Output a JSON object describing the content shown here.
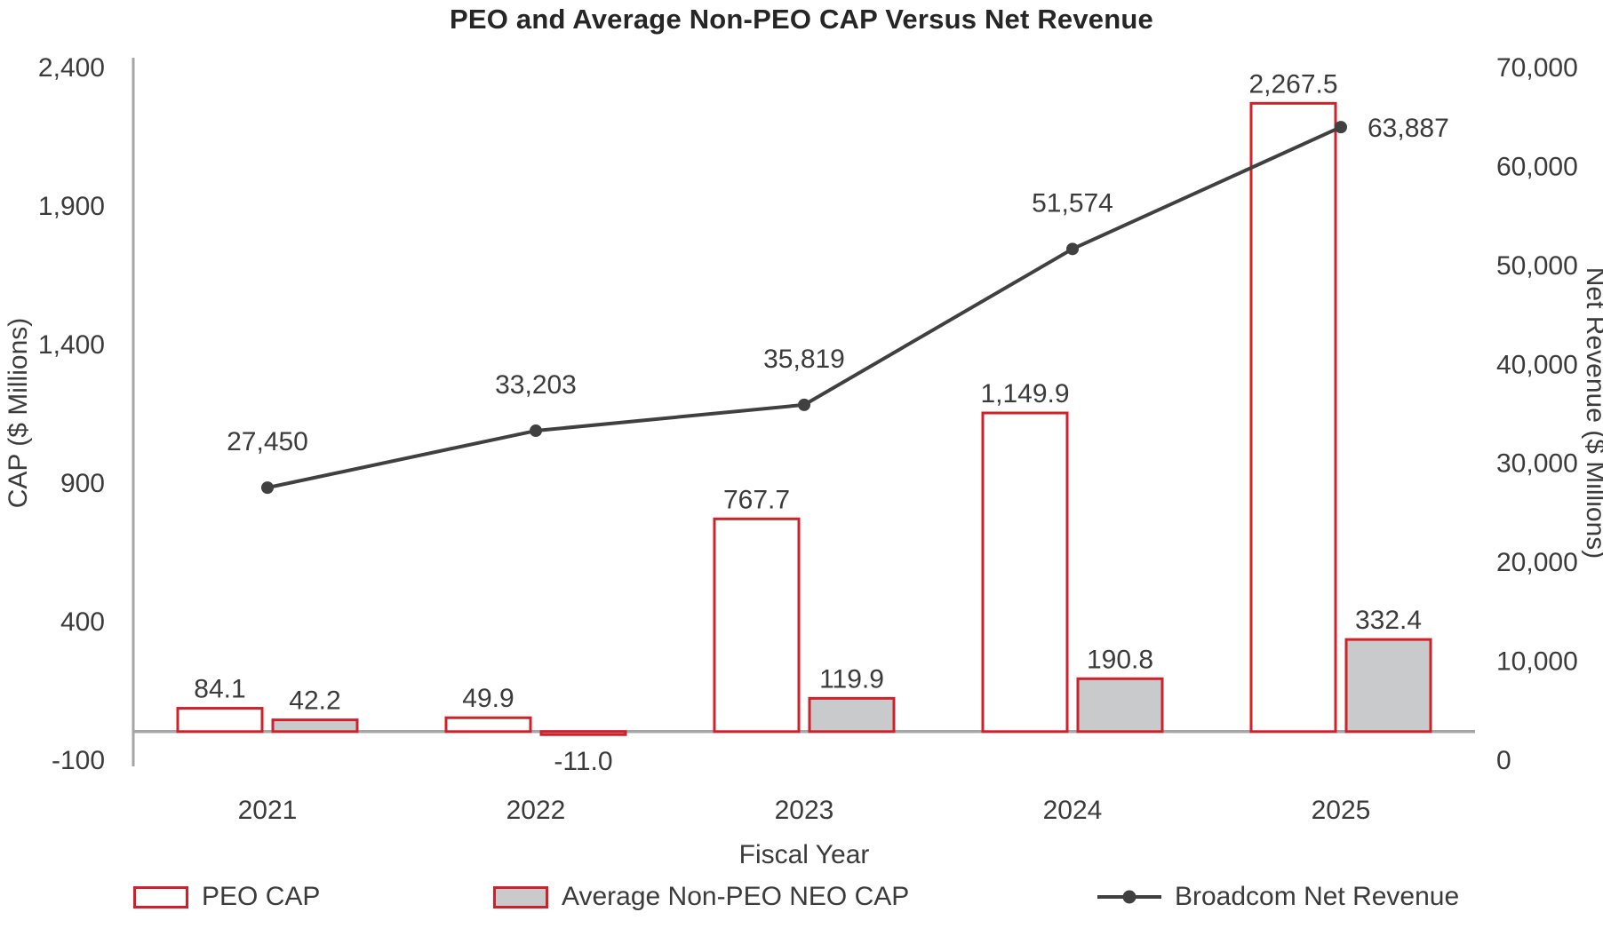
{
  "title": "PEO and Average Non-PEO CAP Versus Net Revenue",
  "chart_data": {
    "type": "combo-bar-line",
    "title": "PEO and Average Non-PEO CAP Versus Net Revenue",
    "categories": [
      "2021",
      "2022",
      "2023",
      "2024",
      "2025"
    ],
    "xlabel": "Fiscal Year",
    "grid": false,
    "legend_position": "bottom",
    "series": [
      {
        "name": "PEO CAP",
        "type": "bar",
        "axis": "left",
        "values": [
          84.1,
          49.9,
          767.7,
          1149.9,
          2267.5
        ],
        "labels": [
          "84.1",
          "49.9",
          "767.7",
          "1,149.9",
          "2,267.5"
        ],
        "fill": "#FFFFFF",
        "stroke": "#D0212A"
      },
      {
        "name": "Average Non-PEO NEO CAP",
        "type": "bar",
        "axis": "left",
        "values": [
          42.2,
          -11.0,
          119.9,
          190.8,
          332.4
        ],
        "labels": [
          "42.2",
          "-11.0",
          "119.9",
          "190.8",
          "332.4"
        ],
        "fill": "#C9CACC",
        "stroke": "#D0212A"
      },
      {
        "name": "Broadcom Net Revenue",
        "type": "line",
        "axis": "right",
        "values": [
          27450,
          33203,
          35819,
          51574,
          63887
        ],
        "labels": [
          "27,450",
          "33,203",
          "35,819",
          "51,574",
          "63,887"
        ],
        "stroke": "#404040",
        "marker_fill": "#404040"
      }
    ],
    "left_axis": {
      "label": "CAP ($ Millions)",
      "min": -100,
      "max": 2400,
      "ticks": [
        -100,
        400,
        900,
        1400,
        1900,
        2400
      ],
      "tick_labels": [
        "-100",
        "400",
        "900",
        "1,400",
        "1,900",
        "2,400"
      ]
    },
    "right_axis": {
      "label": "Net Revenue ($ Millions)",
      "min": 0,
      "max": 70000,
      "ticks": [
        0,
        10000,
        20000,
        30000,
        40000,
        50000,
        60000,
        70000
      ],
      "tick_labels": [
        "0",
        "10,000",
        "20,000",
        "30,000",
        "40,000",
        "50,000",
        "60,000",
        "70,000"
      ]
    },
    "colors": {
      "axis_line": "#A6A6A6",
      "text": "#3B3B3B",
      "title_text": "#262626"
    }
  }
}
